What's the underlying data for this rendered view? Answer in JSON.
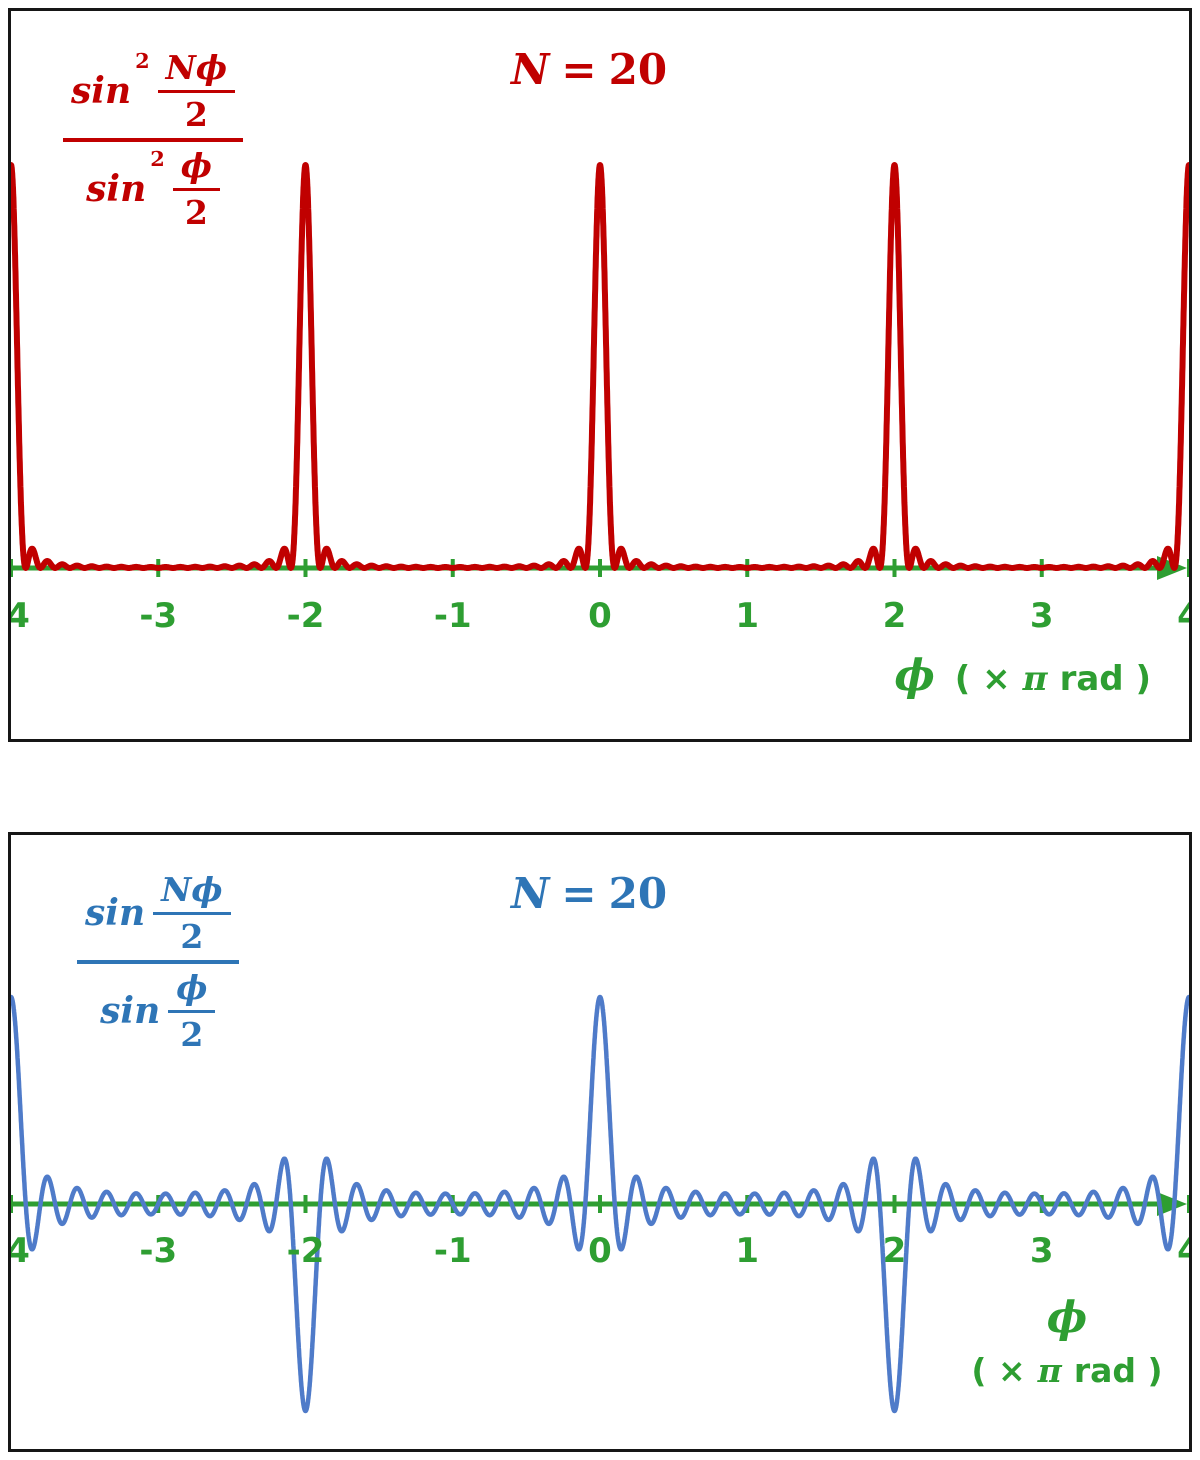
{
  "colors": {
    "red": "#c00000",
    "blue_text": "#2e75b6",
    "blue_curve": "#4f7bc9",
    "green": "#2e9e32",
    "panel_border": "#161616",
    "background": "#ffffff"
  },
  "panels": [
    {
      "title": {
        "lhs": "N",
        "eq": "=",
        "val": "20"
      },
      "formula": {
        "fn": "sin",
        "exp": "2",
        "num_top": "Nϕ",
        "num_bot": "2",
        "den_top": "ϕ",
        "den_bot": "2"
      },
      "xlabel": {
        "phi": "ϕ",
        "open": "( ×",
        "pi": "π",
        "close": "rad )"
      }
    },
    {
      "title": {
        "lhs": "N",
        "eq": "=",
        "val": "20"
      },
      "formula": {
        "fn": "sin",
        "num_top": "Nϕ",
        "num_bot": "2",
        "den_top": "ϕ",
        "den_bot": "2"
      },
      "xlabel": {
        "phi": "ϕ",
        "open": "( ×",
        "pi": "π",
        "close": "rad )"
      }
    }
  ],
  "chart_data": [
    {
      "type": "line",
      "title": "N = 20",
      "formula": "sin^2(N·ϕ/2) / sin^2(ϕ/2)",
      "N": 20,
      "squared": true,
      "xlabel": "ϕ ( × π rad )",
      "x_unit": "π rad",
      "xlim": [
        -4,
        4
      ],
      "ylim": [
        0,
        400
      ],
      "x_ticks": [
        "-4",
        "-3",
        "-2",
        "-1",
        "0",
        "1",
        "2",
        "3",
        "4"
      ],
      "principal_maxima": [
        {
          "x": -4,
          "y": 400
        },
        {
          "x": -2,
          "y": 400
        },
        {
          "x": 0,
          "y": 400
        },
        {
          "x": 2,
          "y": 400
        },
        {
          "x": 4,
          "y": 400
        }
      ],
      "color": "#c00000",
      "axis_color": "#2e9e32",
      "grid": false,
      "legend": "none"
    },
    {
      "type": "line",
      "title": "N = 20",
      "formula": "sin(N·ϕ/2) / sin(ϕ/2)",
      "N": 20,
      "squared": false,
      "xlabel": "ϕ ( × π rad )",
      "x_unit": "π rad",
      "xlim": [
        -4,
        4
      ],
      "ylim": [
        -22,
        22
      ],
      "x_ticks": [
        "-4",
        "-3",
        "-2",
        "-1",
        "0",
        "1",
        "2",
        "3",
        "4"
      ],
      "principal_extrema": [
        {
          "x": -4,
          "y": 20
        },
        {
          "x": -2,
          "y": -20
        },
        {
          "x": 0,
          "y": 20
        },
        {
          "x": 2,
          "y": -20
        },
        {
          "x": 4,
          "y": 20
        }
      ],
      "color": "#4f7bc9",
      "axis_color": "#2e9e32",
      "grid": false,
      "legend": "none"
    }
  ]
}
